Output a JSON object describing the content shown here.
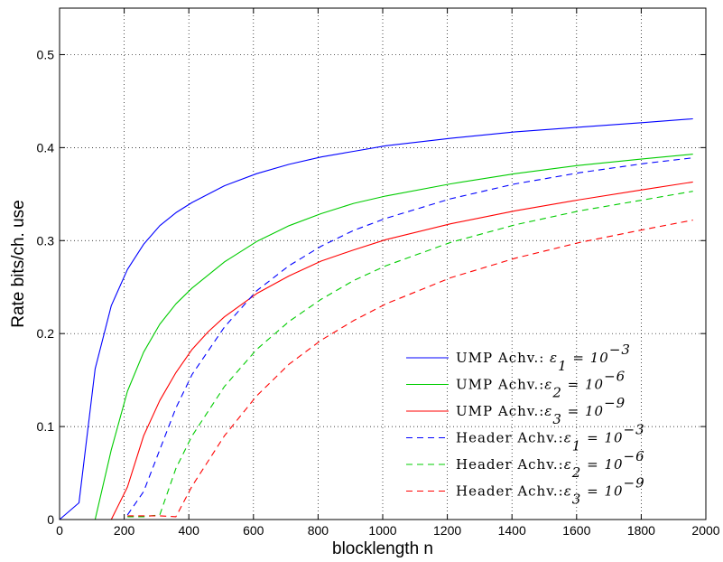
{
  "chart_data": {
    "type": "line",
    "xlabel": "blocklength n",
    "ylabel": "Rate bits/ch. use",
    "xlim": [
      0,
      2000
    ],
    "ylim": [
      0,
      0.55
    ],
    "xticks": [
      "0",
      "200",
      "400",
      "600",
      "800",
      "1000",
      "1200",
      "1400",
      "1600",
      "1800",
      "2000"
    ],
    "yticks": [
      "0",
      "0.1",
      "0.2",
      "0.3",
      "0.4",
      "0.5"
    ],
    "grid": true,
    "legend_position": "bottom-right",
    "series": [
      {
        "name": "UMP Achv.: ε₁ = 10⁻³",
        "color": "#0000ff",
        "dash": "solid",
        "x": [
          0,
          60,
          110,
          160,
          210,
          260,
          310,
          360,
          410,
          510,
          610,
          710,
          810,
          910,
          1010,
          1210,
          1410,
          1610,
          1810,
          1960
        ],
        "y": [
          0,
          0.018,
          0.162,
          0.23,
          0.269,
          0.296,
          0.316,
          0.33,
          0.341,
          0.359,
          0.372,
          0.382,
          0.39,
          0.396,
          0.402,
          0.41,
          0.417,
          0.422,
          0.427,
          0.431
        ]
      },
      {
        "name": "UMP Achv.:ε₂ = 10⁻⁶",
        "color": "#00cc00",
        "dash": "solid",
        "x": [
          0,
          110,
          160,
          210,
          260,
          310,
          360,
          410,
          510,
          610,
          710,
          810,
          910,
          1010,
          1210,
          1410,
          1610,
          1810,
          1960
        ],
        "y": [
          0,
          0,
          0.075,
          0.138,
          0.18,
          0.21,
          0.232,
          0.249,
          0.277,
          0.299,
          0.316,
          0.329,
          0.34,
          0.348,
          0.361,
          0.372,
          0.381,
          0.388,
          0.393
        ]
      },
      {
        "name": "UMP Achv.:ε₃ = 10⁻⁹",
        "color": "#ff0000",
        "dash": "solid",
        "x": [
          0,
          160,
          210,
          260,
          310,
          360,
          410,
          460,
          510,
          610,
          710,
          810,
          910,
          1010,
          1210,
          1410,
          1610,
          1810,
          1960
        ],
        "y": [
          0,
          0,
          0.035,
          0.09,
          0.128,
          0.158,
          0.183,
          0.202,
          0.218,
          0.243,
          0.262,
          0.278,
          0.29,
          0.301,
          0.318,
          0.332,
          0.344,
          0.355,
          0.363
        ]
      },
      {
        "name": "Header Achv.:ε₁ = 10⁻³",
        "color": "#0000ff",
        "dash": "dashed",
        "x": [
          210,
          260,
          310,
          360,
          410,
          510,
          610,
          710,
          810,
          910,
          1010,
          1210,
          1410,
          1610,
          1810,
          1960
        ],
        "y": [
          0.005,
          0.03,
          0.075,
          0.12,
          0.156,
          0.207,
          0.246,
          0.273,
          0.294,
          0.311,
          0.324,
          0.345,
          0.361,
          0.373,
          0.383,
          0.389
        ]
      },
      {
        "name": "Header Achv.:ε₂ = 10⁻⁶",
        "color": "#00cc00",
        "dash": "dashed",
        "x": [
          210,
          260,
          310,
          360,
          410,
          510,
          610,
          710,
          810,
          910,
          1010,
          1210,
          1410,
          1610,
          1810,
          1960
        ],
        "y": [
          0.003,
          0.003,
          0.005,
          0.055,
          0.09,
          0.143,
          0.183,
          0.213,
          0.237,
          0.257,
          0.273,
          0.298,
          0.317,
          0.332,
          0.344,
          0.353
        ]
      },
      {
        "name": "Header Achv.:ε₃ = 10⁻⁹",
        "color": "#ff0000",
        "dash": "dashed",
        "x": [
          210,
          260,
          310,
          360,
          410,
          510,
          610,
          710,
          810,
          910,
          1010,
          1210,
          1410,
          1610,
          1810,
          1960
        ],
        "y": [
          0.004,
          0.004,
          0.004,
          0.003,
          0.036,
          0.09,
          0.133,
          0.167,
          0.193,
          0.214,
          0.232,
          0.26,
          0.281,
          0.298,
          0.312,
          0.322
        ]
      }
    ]
  },
  "legend": [
    {
      "label": "UMP Achv.:",
      "eps_sym": "ε",
      "eps_sub": "1",
      "rhs": " = 10",
      "exp": "−3",
      "gap": true
    },
    {
      "label": "UMP Achv.:",
      "eps_sym": "ε",
      "eps_sub": "2",
      "rhs": " = 10",
      "exp": "−6",
      "gap": false
    },
    {
      "label": "UMP Achv.:",
      "eps_sym": "ε",
      "eps_sub": "3",
      "rhs": " = 10",
      "exp": "−9",
      "gap": false
    },
    {
      "label": "Header Achv.:",
      "eps_sym": "ε",
      "eps_sub": "1",
      "rhs": " = 10",
      "exp": "−3",
      "gap": false
    },
    {
      "label": "Header Achv.:",
      "eps_sym": "ε",
      "eps_sub": "2",
      "rhs": " = 10",
      "exp": "−6",
      "gap": false
    },
    {
      "label": "Header Achv.:",
      "eps_sym": "ε",
      "eps_sub": "3",
      "rhs": " = 10",
      "exp": "−9",
      "gap": false
    }
  ]
}
